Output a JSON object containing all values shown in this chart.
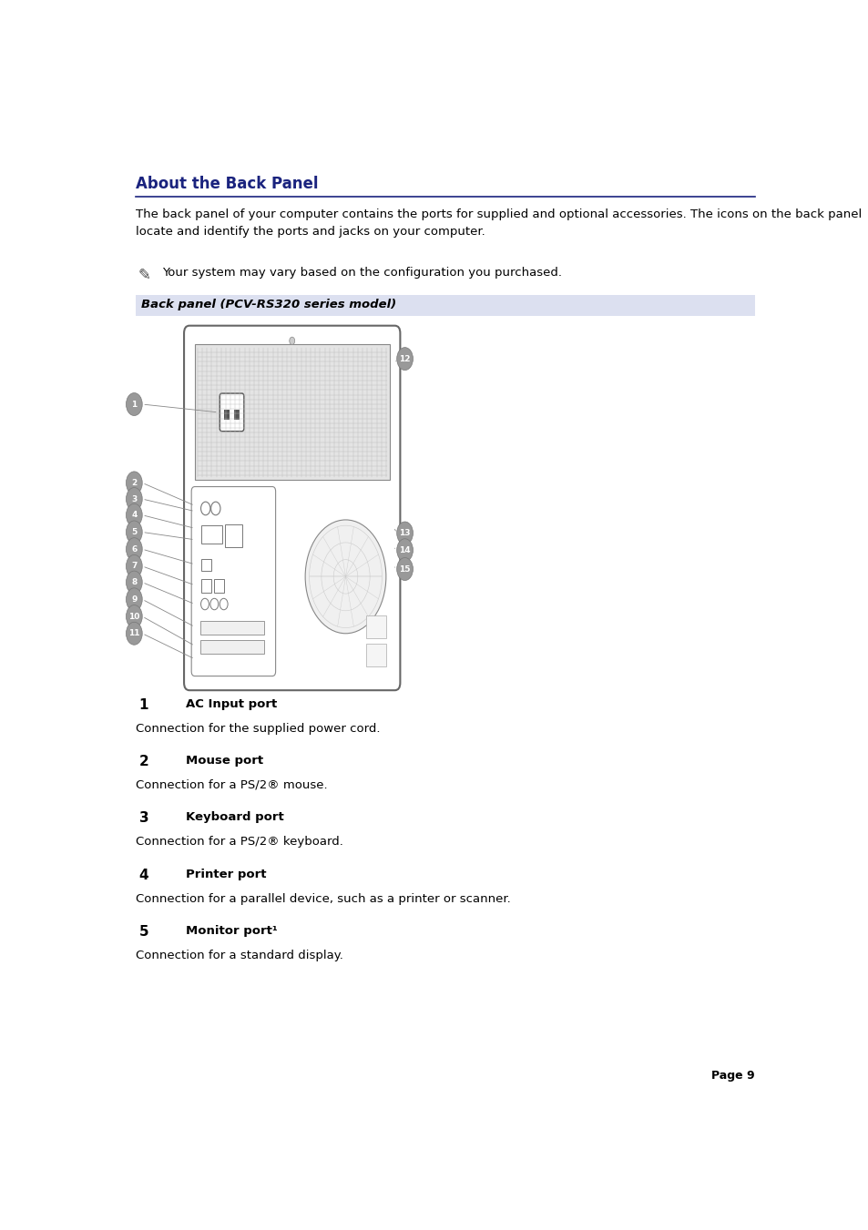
{
  "title": "About the Back Panel",
  "title_color": "#1a237e",
  "bg_color": "#ffffff",
  "header_rule_color": "#1a237e",
  "body_text_1": "The back panel of your computer contains the ports for supplied and optional accessories. The icons on the back panel\nlocate and identify the ports and jacks on your computer.",
  "note_text": "Your system may vary based on the configuration you purchased.",
  "caption_bg": "#dce0f0",
  "caption_text": "Back panel (PCV-RS320 series model)",
  "port_entries": [
    {
      "num": "1",
      "title": "AC Input port",
      "desc": "Connection for the supplied power cord."
    },
    {
      "num": "2",
      "title": "Mouse port",
      "desc": "Connection for a PS/2® mouse."
    },
    {
      "num": "3",
      "title": "Keyboard port",
      "desc": "Connection for a PS/2® keyboard."
    },
    {
      "num": "4",
      "title": "Printer port",
      "desc": "Connection for a parallel device, such as a printer or scanner."
    },
    {
      "num": "5",
      "title": "Monitor port¹",
      "desc": "Connection for a standard display."
    }
  ],
  "page_label": "Page 9",
  "text_color": "#000000",
  "num_color": "#000000"
}
